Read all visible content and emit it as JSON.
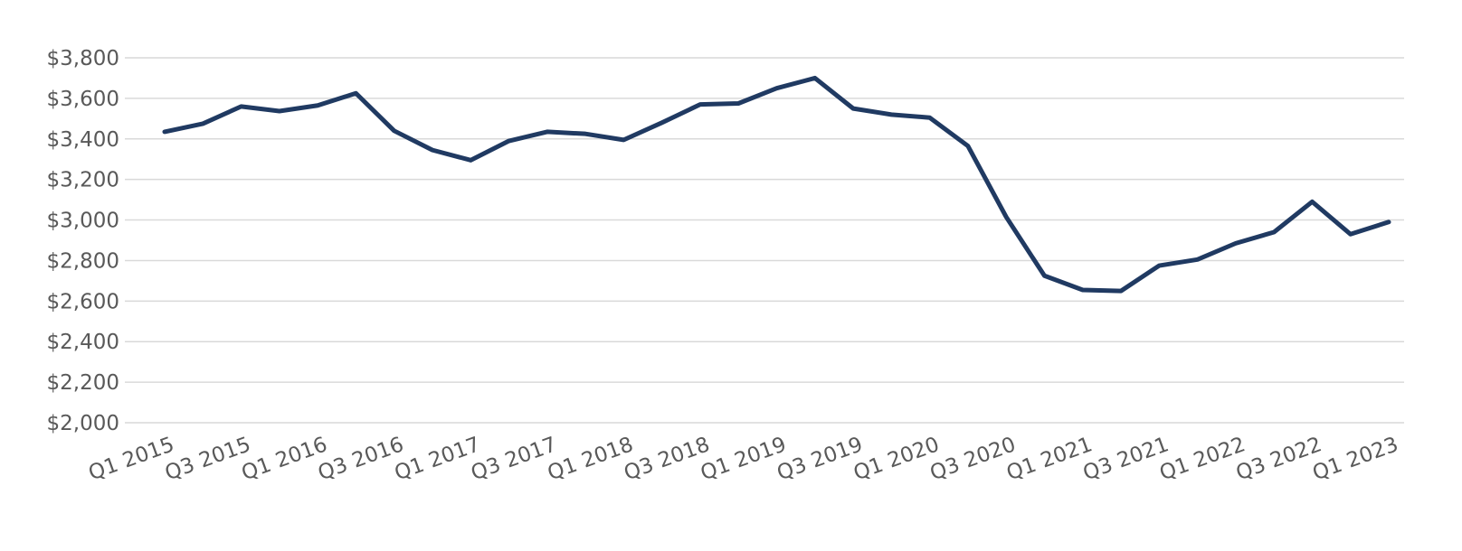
{
  "chart_data": {
    "type": "line",
    "categories": [
      "Q1 2015",
      null,
      "Q3 2015",
      null,
      "Q1 2016",
      null,
      "Q3 2016",
      null,
      "Q1 2017",
      null,
      "Q3 2017",
      null,
      "Q1 2018",
      null,
      "Q3 2018",
      null,
      "Q1 2019",
      null,
      "Q3 2019",
      null,
      "Q1 2020",
      null,
      "Q3 2020",
      null,
      "Q1 2021",
      null,
      "Q3 2021",
      null,
      "Q1 2022",
      null,
      "Q3 2022",
      null,
      "Q1 2023"
    ],
    "series": [
      {
        "color": "#203a62",
        "values": [
          3435,
          3475,
          3560,
          3537,
          3565,
          3625,
          3440,
          3345,
          3295,
          3390,
          3435,
          3425,
          3395,
          3480,
          3570,
          3575,
          3650,
          3700,
          3550,
          3520,
          3505,
          3365,
          3015,
          2725,
          2655,
          2650,
          2775,
          2805,
          2885,
          2940,
          3090,
          2930,
          2990
        ]
      }
    ],
    "ylim": [
      2000,
      3800
    ],
    "yticks": [
      {
        "value": 2000,
        "label": "$2,000"
      },
      {
        "value": 2200,
        "label": "$2,200"
      },
      {
        "value": 2400,
        "label": "$2,400"
      },
      {
        "value": 2600,
        "label": "$2,600"
      },
      {
        "value": 2800,
        "label": "$2,800"
      },
      {
        "value": 3000,
        "label": "$3,000"
      },
      {
        "value": 3200,
        "label": "$3,200"
      },
      {
        "value": 3400,
        "label": "$3,400"
      },
      {
        "value": 3600,
        "label": "$3,600"
      },
      {
        "value": 3800,
        "label": "$3,800"
      }
    ],
    "grid": true
  }
}
